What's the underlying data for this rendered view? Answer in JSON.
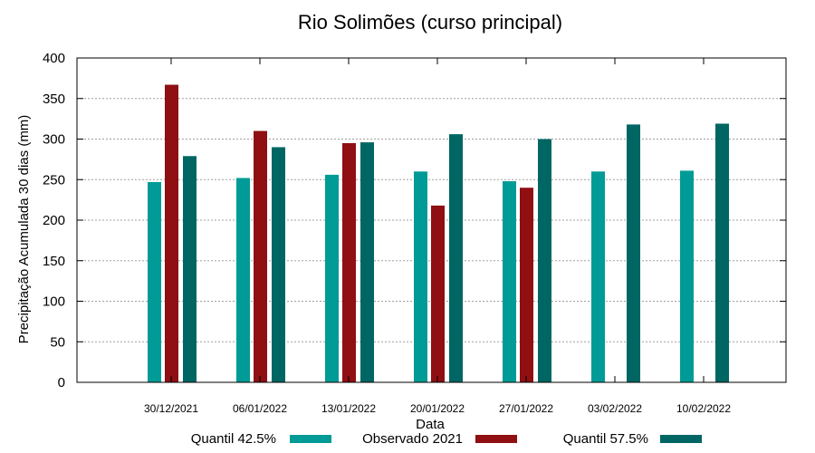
{
  "chart_data": {
    "type": "bar",
    "title": "Rio Solimões (curso principal)",
    "xlabel": "Data",
    "ylabel": "Precipitação Acumulada 30 dias (mm)",
    "categories": [
      "30/12/2021",
      "06/01/2022",
      "13/01/2022",
      "20/01/2022",
      "27/01/2022",
      "03/02/2022",
      "10/02/2022"
    ],
    "ylim": [
      0,
      400
    ],
    "yticks": [
      0,
      50,
      100,
      150,
      200,
      250,
      300,
      350,
      400
    ],
    "grid": true,
    "legend_position": "bottom",
    "series": [
      {
        "name": "Quantil 42.5%",
        "color": "#009b96",
        "values": [
          247,
          252,
          256,
          260,
          248,
          260,
          261
        ]
      },
      {
        "name": "Observado 2021",
        "color": "#8f0f12",
        "values": [
          367,
          310,
          295,
          218,
          240,
          null,
          null
        ]
      },
      {
        "name": "Quantil 57.5%",
        "color": "#006663",
        "values": [
          279,
          290,
          296,
          306,
          300,
          318,
          319
        ]
      }
    ]
  }
}
